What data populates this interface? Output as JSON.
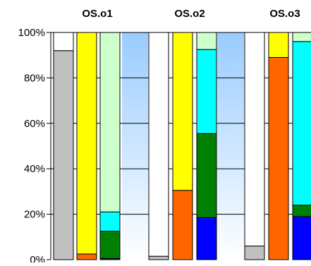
{
  "chart_data": {
    "type": "bar",
    "stacked": true,
    "percent": true,
    "groups": [
      "OS.o1",
      "OS.o2",
      "OS.o3"
    ],
    "y_ticks": [
      "0%",
      "20%",
      "40%",
      "60%",
      "80%",
      "100%"
    ],
    "ylim": [
      0,
      100
    ],
    "grid": true,
    "colors": {
      "gray": "#c0c0c0",
      "blue": "#0000ff",
      "orange": "#ff6600",
      "green": "#008000",
      "cyan": "#00ffff",
      "yellow": "#ffff00",
      "light-green": "#ccffcc",
      "white": "#ffffff"
    },
    "bars": [
      {
        "group": 0,
        "segments": [
          {
            "color": "gray",
            "value": 92
          },
          {
            "color": "white",
            "value": 8
          }
        ]
      },
      {
        "group": 0,
        "segments": [
          {
            "color": "orange",
            "value": 2.5
          },
          {
            "color": "yellow",
            "value": 97.5
          }
        ]
      },
      {
        "group": 0,
        "segments": [
          {
            "color": "blue",
            "value": 0.5
          },
          {
            "color": "green",
            "value": 12
          },
          {
            "color": "cyan",
            "value": 8.5
          },
          {
            "color": "light-green",
            "value": 79
          }
        ]
      },
      {
        "group": 1,
        "segments": [
          {
            "color": "gray",
            "value": 1.5
          },
          {
            "color": "white",
            "value": 98.5
          }
        ]
      },
      {
        "group": 1,
        "segments": [
          {
            "color": "orange",
            "value": 30.5
          },
          {
            "color": "yellow",
            "value": 69.5
          }
        ]
      },
      {
        "group": 1,
        "segments": [
          {
            "color": "blue",
            "value": 18.5
          },
          {
            "color": "green",
            "value": 37
          },
          {
            "color": "cyan",
            "value": 37
          },
          {
            "color": "light-green",
            "value": 7.5
          }
        ]
      },
      {
        "group": 2,
        "segments": [
          {
            "color": "gray",
            "value": 6
          },
          {
            "color": "white",
            "value": 94
          }
        ]
      },
      {
        "group": 2,
        "segments": [
          {
            "color": "orange",
            "value": 89
          },
          {
            "color": "yellow",
            "value": 11
          }
        ]
      },
      {
        "group": 2,
        "segments": [
          {
            "color": "blue",
            "value": 19
          },
          {
            "color": "green",
            "value": 5
          },
          {
            "color": "cyan",
            "value": 72
          },
          {
            "color": "light-green",
            "value": 4
          }
        ]
      }
    ]
  }
}
